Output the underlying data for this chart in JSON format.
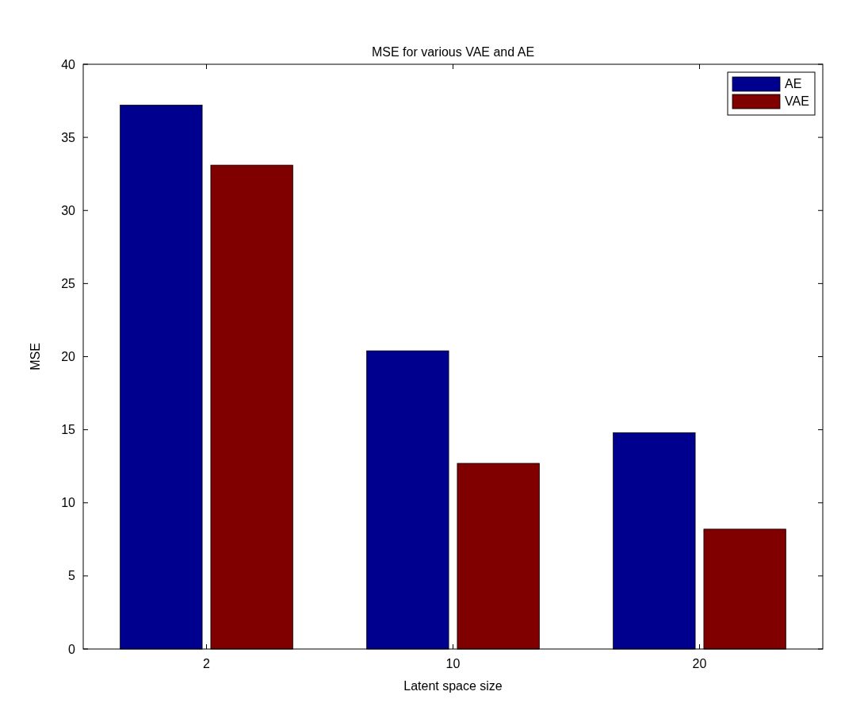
{
  "chart_data": {
    "type": "bar",
    "title": "MSE for various VAE and AE",
    "xlabel": "Latent space size",
    "ylabel": "MSE",
    "categories": [
      "2",
      "10",
      "20"
    ],
    "series": [
      {
        "name": "AE",
        "color": "#00008f",
        "values": [
          37.2,
          20.4,
          14.8
        ]
      },
      {
        "name": "VAE",
        "color": "#800000",
        "values": [
          33.1,
          12.7,
          8.2
        ]
      }
    ],
    "ylim": [
      0,
      40
    ],
    "yticks": [
      0,
      5,
      10,
      15,
      20,
      25,
      30,
      35,
      40
    ],
    "legend": "top right",
    "grid": false
  }
}
